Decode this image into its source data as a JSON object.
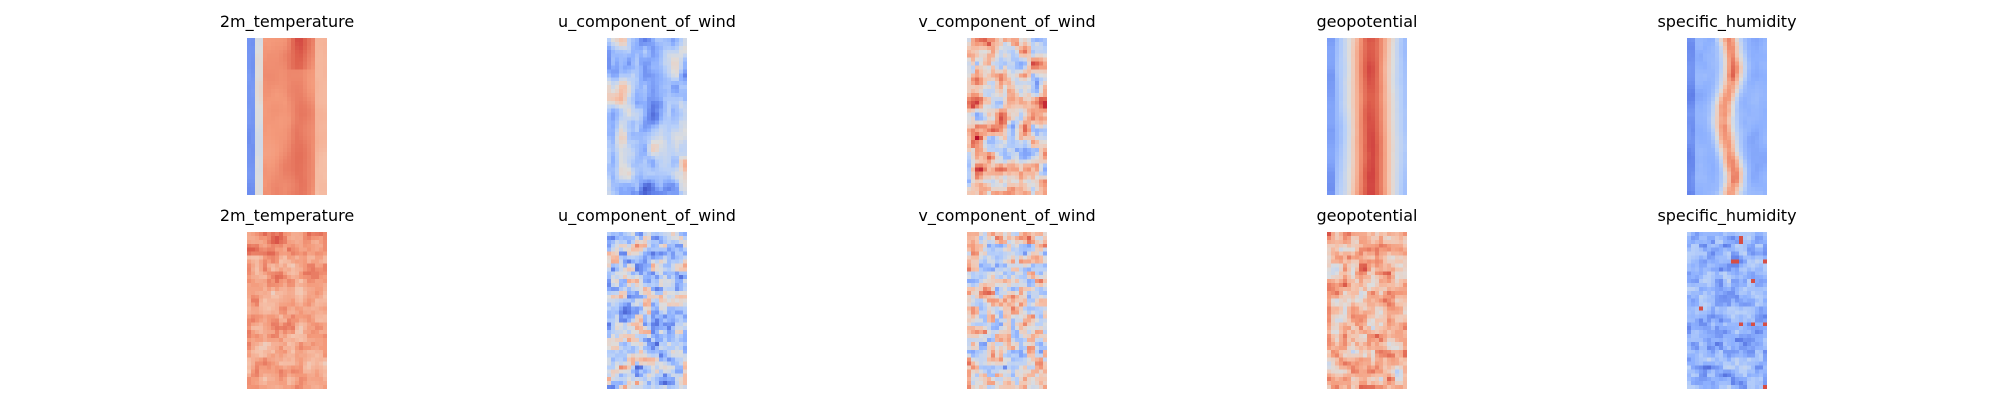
{
  "figure": {
    "rows": 2,
    "cols": 5
  },
  "colors": {
    "colormap": "coolwarm",
    "low": "#3b4cc0",
    "mid": "#dddddd",
    "high": "#b40426"
  },
  "chart_data": [
    {
      "type": "heatmap",
      "title": "2m_temperature",
      "row": 0,
      "col": 0,
      "pattern": "temperature_smooth",
      "colormap": "coolwarm",
      "axes": "off"
    },
    {
      "type": "heatmap",
      "title": "u_component_of_wind",
      "row": 0,
      "col": 1,
      "pattern": "u_wind_smooth",
      "colormap": "coolwarm",
      "axes": "off"
    },
    {
      "type": "heatmap",
      "title": "v_component_of_wind",
      "row": 0,
      "col": 2,
      "pattern": "v_wind_smooth",
      "colormap": "coolwarm",
      "axes": "off"
    },
    {
      "type": "heatmap",
      "title": "geopotential",
      "row": 0,
      "col": 3,
      "pattern": "geopotential_smooth",
      "colormap": "coolwarm",
      "axes": "off"
    },
    {
      "type": "heatmap",
      "title": "specific_humidity",
      "row": 0,
      "col": 4,
      "pattern": "humidity_smooth",
      "colormap": "coolwarm",
      "axes": "off"
    },
    {
      "type": "heatmap",
      "title": "2m_temperature",
      "row": 1,
      "col": 0,
      "pattern": "temperature_noisy",
      "colormap": "coolwarm",
      "axes": "off"
    },
    {
      "type": "heatmap",
      "title": "u_component_of_wind",
      "row": 1,
      "col": 1,
      "pattern": "u_wind_noisy",
      "colormap": "coolwarm",
      "axes": "off"
    },
    {
      "type": "heatmap",
      "title": "v_component_of_wind",
      "row": 1,
      "col": 2,
      "pattern": "v_wind_noisy",
      "colormap": "coolwarm",
      "axes": "off"
    },
    {
      "type": "heatmap",
      "title": "geopotential",
      "row": 1,
      "col": 3,
      "pattern": "geopotential_noisy",
      "colormap": "coolwarm",
      "axes": "off"
    },
    {
      "type": "heatmap",
      "title": "specific_humidity",
      "row": 1,
      "col": 4,
      "pattern": "humidity_noisy",
      "colormap": "coolwarm",
      "axes": "off"
    }
  ]
}
